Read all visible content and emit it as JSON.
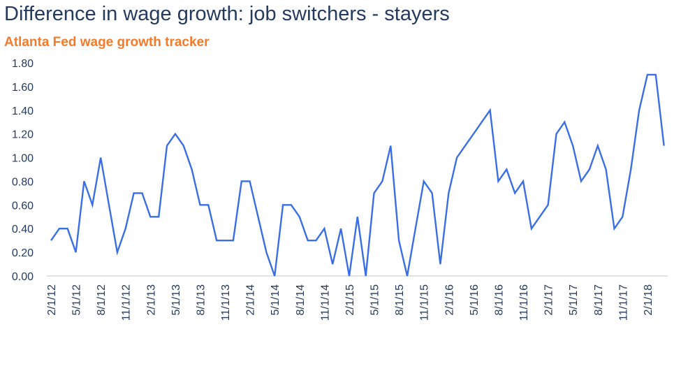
{
  "header": {
    "title": "Difference in wage growth: job switchers - stayers",
    "subtitle": "Atlanta Fed wage growth tracker"
  },
  "colors": {
    "title": "#243a5e",
    "subtitle": "#f47b2a",
    "line": "#3a6ee6",
    "axis": "#d9d9d9"
  },
  "chart_data": {
    "type": "line",
    "title": "Difference in wage growth: job switchers - stayers",
    "subtitle": "Atlanta Fed wage growth tracker",
    "xlabel": "",
    "ylabel": "",
    "ylim": [
      0,
      1.8
    ],
    "y_ticks": [
      "0.00",
      "0.20",
      "0.40",
      "0.60",
      "0.80",
      "1.00",
      "1.20",
      "1.40",
      "1.60",
      "1.80"
    ],
    "x_tick_labels": [
      "2/1/12",
      "5/1/12",
      "8/1/12",
      "11/1/12",
      "2/1/13",
      "5/1/13",
      "8/1/13",
      "11/1/13",
      "2/1/14",
      "5/1/14",
      "8/1/14",
      "11/1/14",
      "2/1/15",
      "5/1/15",
      "8/1/15",
      "11/1/15",
      "2/1/16",
      "5/1/16",
      "8/1/16",
      "11/1/16",
      "2/1/17",
      "5/1/17",
      "8/1/17",
      "11/1/17",
      "2/1/18"
    ],
    "x_range": [
      "2/1/12",
      "4/1/18"
    ],
    "grid": false,
    "legend": "none",
    "series": [
      {
        "values": [
          0.3,
          0.4,
          0.4,
          0.2,
          0.8,
          0.6,
          1.0,
          0.6,
          0.2,
          0.4,
          0.7,
          0.7,
          0.5,
          0.5,
          1.1,
          1.2,
          1.1,
          0.9,
          0.6,
          0.6,
          0.3,
          0.3,
          0.3,
          0.8,
          0.8,
          0.5,
          0.2,
          0.0,
          0.6,
          0.6,
          0.5,
          0.3,
          0.3,
          0.4,
          0.1,
          0.4,
          0.0,
          0.5,
          0.0,
          0.7,
          0.8,
          1.1,
          0.3,
          0.0,
          0.4,
          0.8,
          0.7,
          0.1,
          0.7,
          1.0,
          1.1,
          1.2,
          1.3,
          1.4,
          0.8,
          0.9,
          0.7,
          0.8,
          0.4,
          0.5,
          0.6,
          1.2,
          1.3,
          1.1,
          0.8,
          0.9,
          1.1,
          0.9,
          0.4,
          0.5,
          0.9,
          1.4,
          1.7,
          1.7,
          1.1
        ]
      }
    ]
  }
}
